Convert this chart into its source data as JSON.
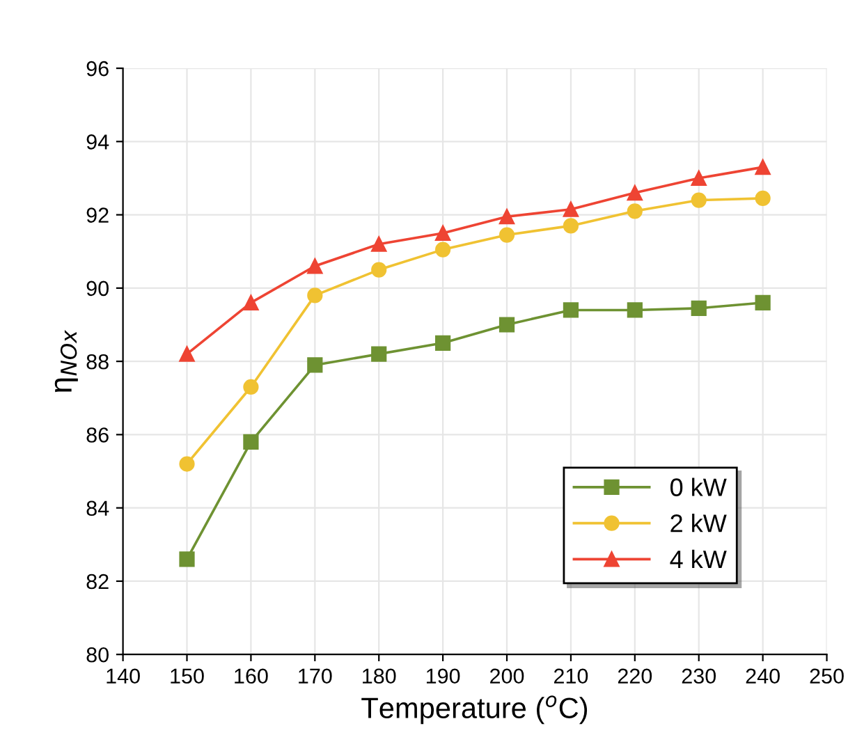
{
  "chart_data": {
    "type": "line",
    "xlabel": "Temperature ($^{o}$C)",
    "ylabel": "η$_{NOx}$",
    "x": [
      150,
      160,
      170,
      180,
      190,
      200,
      210,
      220,
      230,
      240
    ],
    "series": [
      {
        "name": "0 kW",
        "color": "#6e9232",
        "marker": "square",
        "values": [
          82.6,
          85.8,
          87.9,
          88.2,
          88.5,
          89.0,
          89.4,
          89.4,
          89.45,
          89.6
        ]
      },
      {
        "name": "2 kW",
        "color": "#f0c232",
        "marker": "circle",
        "values": [
          85.2,
          87.3,
          89.8,
          90.5,
          91.05,
          91.45,
          91.7,
          92.1,
          92.4,
          92.45
        ]
      },
      {
        "name": "4 kW",
        "color": "#ee4433",
        "marker": "triangle",
        "values": [
          88.2,
          89.6,
          90.6,
          91.2,
          91.5,
          91.95,
          92.15,
          92.6,
          93.0,
          93.3
        ]
      }
    ],
    "xlim": [
      140,
      250
    ],
    "xticks": [
      140,
      150,
      160,
      170,
      180,
      190,
      200,
      210,
      220,
      230,
      240,
      250
    ],
    "ylim": [
      80,
      96
    ],
    "yticks": [
      80,
      82,
      84,
      86,
      88,
      90,
      92,
      94,
      96
    ],
    "grid": true,
    "legend": "bottom right",
    "line_style": "solid"
  }
}
